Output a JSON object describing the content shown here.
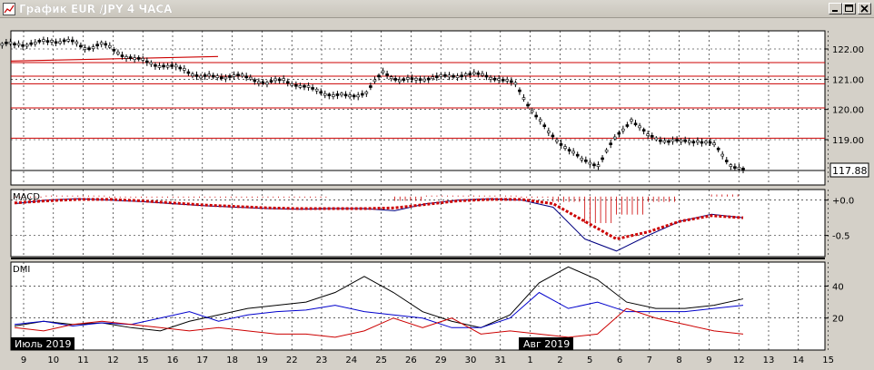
{
  "window": {
    "title": "График EUR /JPY  4 ЧАСА",
    "buttons": [
      "minimize",
      "maximize",
      "close"
    ]
  },
  "price_label": "117.88",
  "panels": {
    "macd": {
      "label": "MACD"
    },
    "dmi": {
      "label": "DMI"
    }
  },
  "month_labels": [
    "Июль 2019",
    "Авг 2019"
  ],
  "colors": {
    "background": "#ffffff",
    "grid": "#000000",
    "macd_line": "#000080",
    "macd_signal": "#cc0000",
    "dmi_adx": "#000000",
    "dmi_plus": "#0000cc",
    "dmi_minus": "#cc0000",
    "resistance": "#cc0000"
  },
  "chart_data": [
    {
      "type": "candlestick",
      "title": "",
      "y_ticks": [
        "122.00",
        "121.00",
        "120.00",
        "119.00"
      ],
      "ylim": [
        117.5,
        122.6
      ],
      "last_price": 117.88,
      "horizontal_levels": [
        121.55,
        121.1,
        120.85,
        120.05,
        119.05
      ],
      "x_ticks": [
        "9",
        "10",
        "11",
        "12",
        "15",
        "16",
        "17",
        "18",
        "19",
        "22",
        "23",
        "24",
        "25",
        "26",
        "29",
        "30",
        "31",
        "1",
        "2",
        "5",
        "6",
        "7",
        "8",
        "9",
        "12",
        "13",
        "14",
        "15"
      ],
      "close_series": [
        122.15,
        122.2,
        122.25,
        122.3,
        122.0,
        122.2,
        121.85,
        121.7,
        121.5,
        121.45,
        121.3,
        121.1,
        121.05,
        121.15,
        121.0,
        120.9,
        120.95,
        120.8,
        120.6,
        120.5,
        120.4,
        120.6,
        121.2,
        121.0,
        120.95,
        121.1,
        121.05,
        121.2,
        121.1,
        121.05,
        120.8,
        120.0,
        119.2,
        118.8,
        118.3,
        118.2,
        119.0,
        119.7,
        119.1,
        119.0,
        118.9,
        119.0,
        118.8,
        118.2,
        117.9
      ]
    },
    {
      "type": "line",
      "title": "MACD",
      "y_ticks": [
        "+0.0",
        "-0.5"
      ],
      "ylim": [
        -0.8,
        0.15
      ],
      "series": [
        {
          "values": [
            -0.05,
            0.0,
            0.02,
            0.0,
            -0.02,
            -0.05,
            -0.08,
            -0.1,
            -0.12,
            -0.13,
            -0.12,
            -0.12,
            -0.15,
            -0.05,
            0.0,
            0.02,
            0.0,
            -0.1,
            -0.55,
            -0.72,
            -0.5,
            -0.3,
            -0.2,
            -0.25
          ]
        },
        {
          "values": [
            -0.04,
            -0.01,
            0.01,
            0.01,
            -0.01,
            -0.04,
            -0.07,
            -0.09,
            -0.11,
            -0.12,
            -0.12,
            -0.12,
            -0.11,
            -0.06,
            -0.01,
            0.01,
            0.01,
            -0.05,
            -0.3,
            -0.55,
            -0.45,
            -0.3,
            -0.22,
            -0.25
          ]
        }
      ]
    },
    {
      "type": "line",
      "title": "DMI",
      "y_ticks": [
        "40",
        "20"
      ],
      "ylim": [
        0,
        55
      ],
      "series": [
        {
          "values": [
            15,
            18,
            16,
            17,
            14,
            12,
            18,
            22,
            26,
            28,
            30,
            36,
            46,
            36,
            24,
            18,
            14,
            22,
            42,
            52,
            44,
            30,
            26,
            26,
            28,
            32
          ]
        },
        {
          "values": [
            16,
            18,
            15,
            17,
            16,
            20,
            24,
            18,
            22,
            24,
            25,
            28,
            24,
            22,
            20,
            14,
            14,
            20,
            36,
            26,
            30,
            24,
            24,
            24,
            26,
            28
          ]
        },
        {
          "values": [
            14,
            12,
            16,
            18,
            16,
            14,
            12,
            14,
            12,
            10,
            10,
            8,
            12,
            20,
            14,
            20,
            10,
            12,
            10,
            8,
            10,
            26,
            20,
            16,
            12,
            10
          ]
        }
      ]
    }
  ]
}
